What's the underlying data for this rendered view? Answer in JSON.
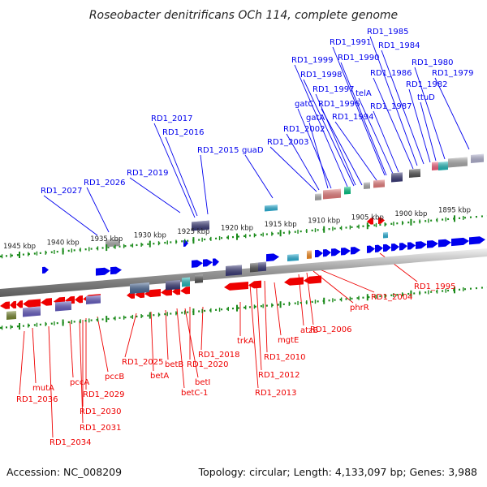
{
  "title": "Roseobacter denitrificans OCh 114, complete genome",
  "footer": {
    "accession": "Accession: NC_008209",
    "topology": "Topology: circular; Length: 4,133,097 bp; Genes: 3,988"
  },
  "colors": {
    "forward": "#0000ee",
    "reverse": "#ee0000",
    "tick": "#1a8a1a",
    "backbone": "#888888"
  },
  "scale_ticks": [
    {
      "label": "1945 kbp",
      "pos": 1945
    },
    {
      "label": "1940 kbp",
      "pos": 1940
    },
    {
      "label": "1935 kbp",
      "pos": 1935
    },
    {
      "label": "1930 kbp",
      "pos": 1930
    },
    {
      "label": "1925 kbp",
      "pos": 1925
    },
    {
      "label": "1920 kbp",
      "pos": 1920
    },
    {
      "label": "1915 kbp",
      "pos": 1915
    },
    {
      "label": "1910 kbp",
      "pos": 1910
    },
    {
      "label": "1905 kbp",
      "pos": 1905
    },
    {
      "label": "1900 kbp",
      "pos": 1900
    },
    {
      "label": "1895 kbp",
      "pos": 1895
    }
  ],
  "forward_genes": [
    {
      "label": "RD1_2027"
    },
    {
      "label": "RD1_2026"
    },
    {
      "label": "RD1_2019"
    },
    {
      "label": "RD1_2017"
    },
    {
      "label": "RD1_2016"
    },
    {
      "label": "RD1_2015"
    },
    {
      "label": "guaD"
    },
    {
      "label": "RD1_2003"
    },
    {
      "label": "RD1_2002"
    },
    {
      "label": "gatA"
    },
    {
      "label": "gatC"
    },
    {
      "label": "RD1_1999"
    },
    {
      "label": "RD1_1998"
    },
    {
      "label": "RD1_1997"
    },
    {
      "label": "RD1_1996"
    },
    {
      "label": "RD1_1994"
    },
    {
      "label": "RD1_1991"
    },
    {
      "label": "RD1_1990"
    },
    {
      "label": "telA"
    },
    {
      "label": "RD1_1987"
    },
    {
      "label": "RD1_1986"
    },
    {
      "label": "RD1_1985"
    },
    {
      "label": "RD1_1984"
    },
    {
      "label": "RD1_1982"
    },
    {
      "label": "ttuD"
    },
    {
      "label": "RD1_1980"
    },
    {
      "label": "RD1_1979"
    }
  ],
  "reverse_genes": [
    {
      "label": "RD1_2036"
    },
    {
      "label": "mutA"
    },
    {
      "label": "RD1_2034"
    },
    {
      "label": "pccA"
    },
    {
      "label": "RD1_2031"
    },
    {
      "label": "RD1_2030"
    },
    {
      "label": "RD1_2029"
    },
    {
      "label": "pccB"
    },
    {
      "label": "RD1_2025"
    },
    {
      "label": "betA"
    },
    {
      "label": "betB"
    },
    {
      "label": "betC-1"
    },
    {
      "label": "betI"
    },
    {
      "label": "RD1_2020"
    },
    {
      "label": "RD1_2018"
    },
    {
      "label": "trkA"
    },
    {
      "label": "RD1_2013"
    },
    {
      "label": "RD1_2012"
    },
    {
      "label": "RD1_2010"
    },
    {
      "label": "mgtE"
    },
    {
      "label": "atzB"
    },
    {
      "label": "RD1_2006"
    },
    {
      "label": "phrR"
    },
    {
      "label": "RD1_2004"
    },
    {
      "label": "RD1_1995"
    }
  ]
}
